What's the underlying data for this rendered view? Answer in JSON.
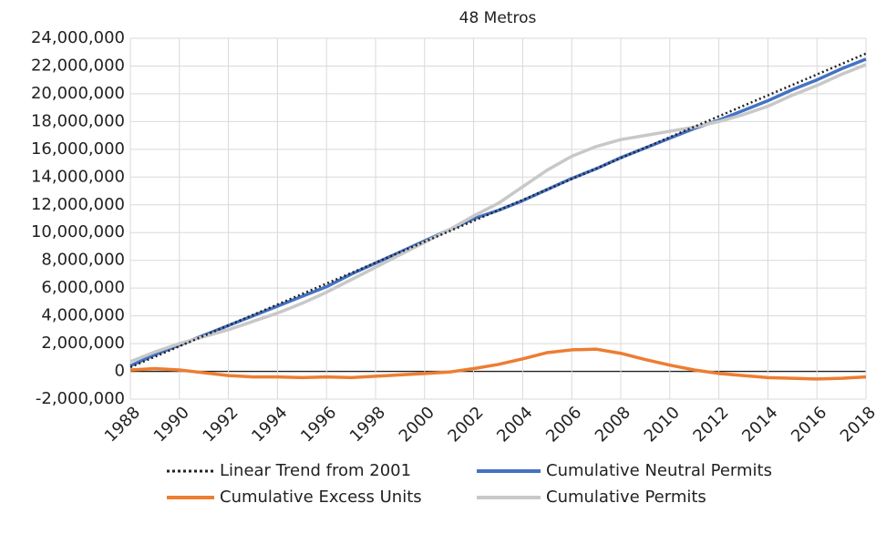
{
  "chart_data": {
    "type": "line",
    "title": "48 Metros",
    "x": [
      1988,
      1989,
      1990,
      1991,
      1992,
      1993,
      1994,
      1995,
      1996,
      1997,
      1998,
      1999,
      2000,
      2001,
      2002,
      2003,
      2004,
      2005,
      2006,
      2007,
      2008,
      2009,
      2010,
      2011,
      2012,
      2013,
      2014,
      2015,
      2016,
      2017,
      2018
    ],
    "xlim": [
      1988,
      2018
    ],
    "xticks": [
      1988,
      1990,
      1992,
      1994,
      1996,
      1998,
      2000,
      2002,
      2004,
      2006,
      2008,
      2010,
      2012,
      2014,
      2016,
      2018
    ],
    "ylim": [
      -2000000,
      24000000
    ],
    "yticks": [
      {
        "value": -2000000,
        "label": "-2,000,000"
      },
      0,
      {
        "value": 2000000,
        "label": "2,000,000"
      },
      {
        "value": 4000000,
        "label": "4,000,000"
      },
      {
        "value": 6000000,
        "label": "6,000,000"
      },
      {
        "value": 8000000,
        "label": "8,000,000"
      },
      {
        "value": 10000000,
        "label": "10,000,000"
      },
      {
        "value": 12000000,
        "label": "12,000,000"
      },
      {
        "value": 14000000,
        "label": "14,000,000"
      },
      {
        "value": 16000000,
        "label": "16,000,000"
      },
      {
        "value": 18000000,
        "label": "18,000,000"
      },
      {
        "value": 20000000,
        "label": "20,000,000"
      },
      {
        "value": 22000000,
        "label": "22,000,000"
      },
      {
        "value": 24000000,
        "label": "24,000,000"
      }
    ],
    "grid": true,
    "legend": "bottom",
    "series": [
      {
        "name": "Linear Trend from 2001",
        "color": "#222222",
        "dash": "dotted",
        "x": [
          1988,
          2018
        ],
        "values": [
          300000,
          22900000
        ]
      },
      {
        "name": "Cumulative Neutral Permits",
        "color": "#4472c4",
        "values": [
          400000,
          1200000,
          1900000,
          2600000,
          3300000,
          4000000,
          4700000,
          5400000,
          6100000,
          7000000,
          7800000,
          8600000,
          9400000,
          10200000,
          11000000,
          11600000,
          12300000,
          13100000,
          13900000,
          14600000,
          15400000,
          16100000,
          16800000,
          17500000,
          18100000,
          18800000,
          19500000,
          20300000,
          21000000,
          21800000,
          22500000
        ]
      },
      {
        "name": "Cumulative Excess Units",
        "color": "#ed7d31",
        "values": [
          100000,
          200000,
          100000,
          -100000,
          -300000,
          -400000,
          -400000,
          -450000,
          -400000,
          -450000,
          -350000,
          -250000,
          -150000,
          -50000,
          200000,
          500000,
          900000,
          1350000,
          1550000,
          1600000,
          1300000,
          850000,
          450000,
          100000,
          -150000,
          -300000,
          -450000,
          -500000,
          -550000,
          -500000,
          -400000
        ]
      },
      {
        "name": "Cumulative Permits",
        "color": "#c8c8c8",
        "values": [
          700000,
          1400000,
          2000000,
          2500000,
          3000000,
          3600000,
          4200000,
          4900000,
          5700000,
          6600000,
          7500000,
          8400000,
          9300000,
          10200000,
          11200000,
          12100000,
          13300000,
          14500000,
          15500000,
          16200000,
          16700000,
          17000000,
          17300000,
          17600000,
          18000000,
          18500000,
          19100000,
          19900000,
          20600000,
          21400000,
          22100000
        ]
      }
    ]
  }
}
